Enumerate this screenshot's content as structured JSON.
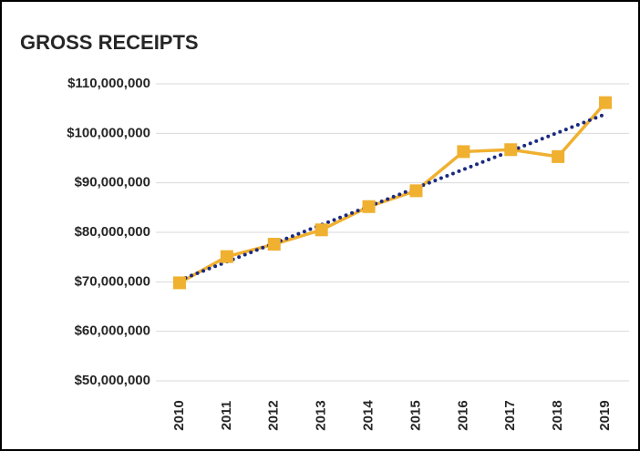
{
  "chart_data": {
    "type": "line",
    "title": "GROSS RECEIPTS",
    "categories": [
      "2010",
      "2011",
      "2012",
      "2013",
      "2014",
      "2015",
      "2016",
      "2017",
      "2018",
      "2019"
    ],
    "series": [
      {
        "name": "Gross Receipts",
        "color": "#f0b030",
        "values": [
          69800000,
          75100000,
          77600000,
          80500000,
          85200000,
          88400000,
          96300000,
          96700000,
          95300000,
          106200000
        ]
      }
    ],
    "trendline": {
      "kind": "linear",
      "color": "#1b2a80"
    },
    "ylim": [
      50000000,
      110000000
    ],
    "yticks": [
      {
        "value": 50000000,
        "label": "$50,000,000"
      },
      {
        "value": 60000000,
        "label": "$60,000,000"
      },
      {
        "value": 70000000,
        "label": "$70,000,000"
      },
      {
        "value": 80000000,
        "label": "$80,000,000"
      },
      {
        "value": 90000000,
        "label": "$90,000,000"
      },
      {
        "value": 100000000,
        "label": "$100,000,000"
      },
      {
        "value": 110000000,
        "label": "$110,000,000"
      }
    ],
    "grid": true
  }
}
